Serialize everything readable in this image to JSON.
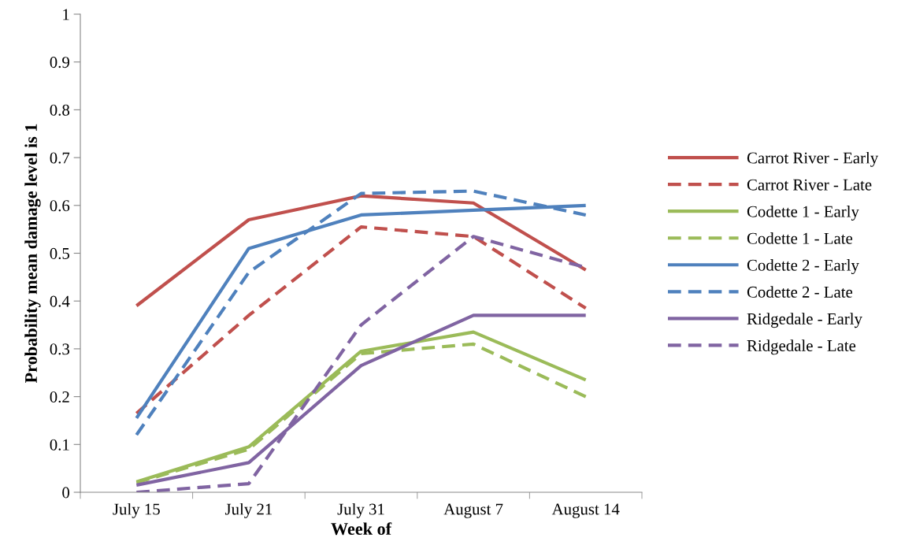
{
  "chart_data": {
    "type": "line",
    "xlabel": "Week of",
    "ylabel": "Probability mean damage level is 1",
    "categories": [
      "July 15",
      "July 21",
      "July 31",
      "August 7",
      "August 14"
    ],
    "ylim": [
      0,
      1
    ],
    "yticks": [
      0,
      0.1,
      0.2,
      0.3,
      0.4,
      0.5,
      0.6,
      0.7,
      0.8,
      0.9,
      1
    ],
    "grid": false,
    "legend": "right",
    "marker": "none",
    "series": [
      {
        "name": "Carrot River - Early",
        "color": "#c0504d",
        "line_style": "solid",
        "values": [
          0.39,
          0.57,
          0.62,
          0.605,
          0.465
        ]
      },
      {
        "name": "Carrot River - Late",
        "color": "#c0504d",
        "line_style": "dashed",
        "values": [
          0.165,
          0.37,
          0.555,
          0.535,
          0.385
        ]
      },
      {
        "name": "Codette 1 - Early",
        "color": "#9bbb59",
        "line_style": "solid",
        "values": [
          0.022,
          0.095,
          0.295,
          0.335,
          0.235
        ]
      },
      {
        "name": "Codette 1 - Late",
        "color": "#9bbb59",
        "line_style": "dashed",
        "values": [
          0.02,
          0.09,
          0.29,
          0.31,
          0.2
        ]
      },
      {
        "name": "Codette 2 - Early",
        "color": "#4f81bd",
        "line_style": "solid",
        "values": [
          0.155,
          0.51,
          0.58,
          0.59,
          0.6
        ]
      },
      {
        "name": "Codette 2 - Late",
        "color": "#4f81bd",
        "line_style": "dashed",
        "values": [
          0.12,
          0.46,
          0.625,
          0.63,
          0.58
        ]
      },
      {
        "name": "Ridgedale - Early",
        "color": "#8064a2",
        "line_style": "solid",
        "values": [
          0.015,
          0.062,
          0.265,
          0.37,
          0.37
        ]
      },
      {
        "name": "Ridgedale - Late",
        "color": "#8064a2",
        "line_style": "dashed",
        "values": [
          0.0,
          0.018,
          0.35,
          0.535,
          0.47
        ]
      }
    ]
  }
}
